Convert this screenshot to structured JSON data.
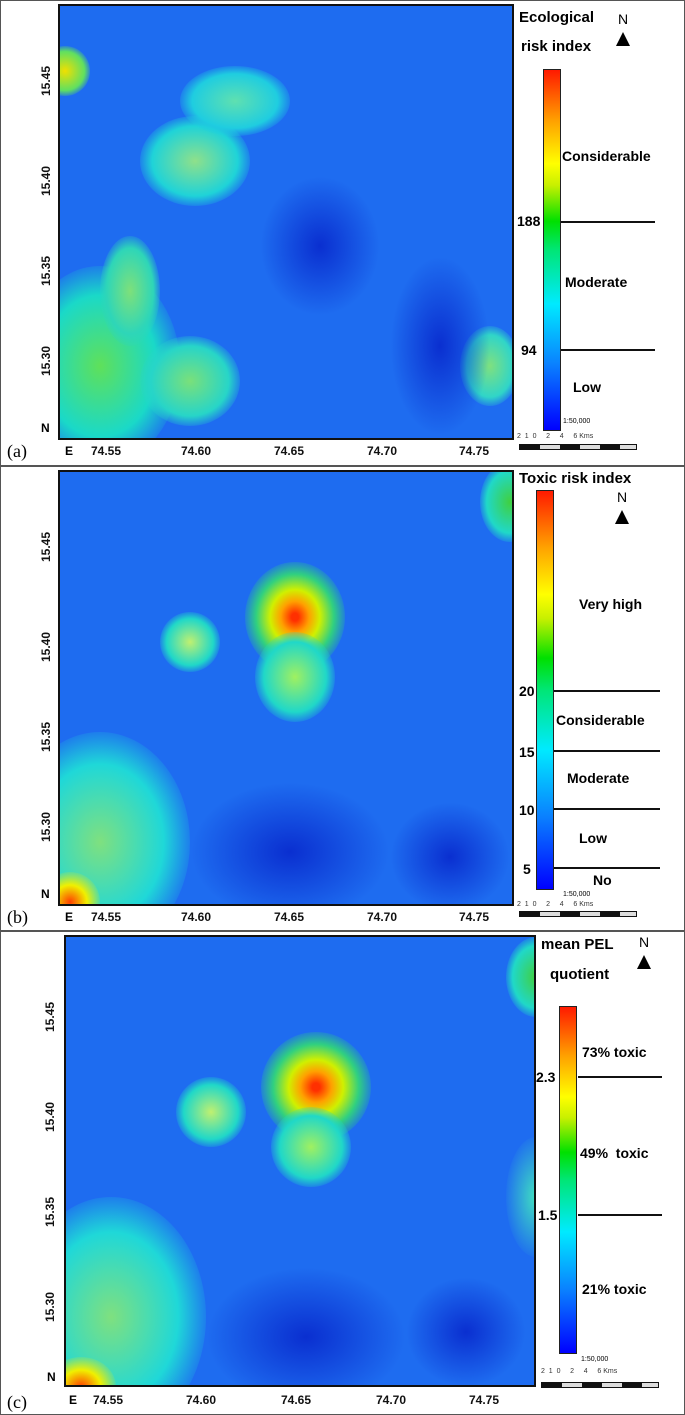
{
  "panels": [
    {
      "label": "(a)",
      "legend_title_1": "Ecological",
      "legend_title_2": "risk index",
      "classes": [
        "Considerable",
        "Moderate",
        "Low"
      ],
      "breaks": [
        "188",
        "94"
      ]
    },
    {
      "label": "(b)",
      "legend_title_1": "Toxic risk index",
      "legend_title_2": "",
      "classes": [
        "Very high",
        "Considerable",
        "Moderate",
        "Low",
        "No"
      ],
      "breaks": [
        "20",
        "15",
        "10",
        "5"
      ]
    },
    {
      "label": "(c)",
      "legend_title_1": "mean PEL",
      "legend_title_2": "quotient",
      "classes": [
        "73% toxic",
        "49%  toxic",
        "21% toxic"
      ],
      "breaks": [
        "2.3",
        "1.5"
      ]
    }
  ],
  "axes": {
    "lat_ticks": [
      "15.45",
      "15.40",
      "15.35",
      "15.30"
    ],
    "lon_ticks": [
      "74.55",
      "74.60",
      "74.65",
      "74.70",
      "74.75"
    ],
    "north_corner": "N",
    "east_corner": "E"
  },
  "north_arrow": "N",
  "scale": {
    "ratio": "1:50,000",
    "ticks": "2  1  0     2     4     6 Kms"
  },
  "colors": {
    "low": "#0000ff",
    "mid": "#00e000",
    "high": "#ff1a00"
  }
}
